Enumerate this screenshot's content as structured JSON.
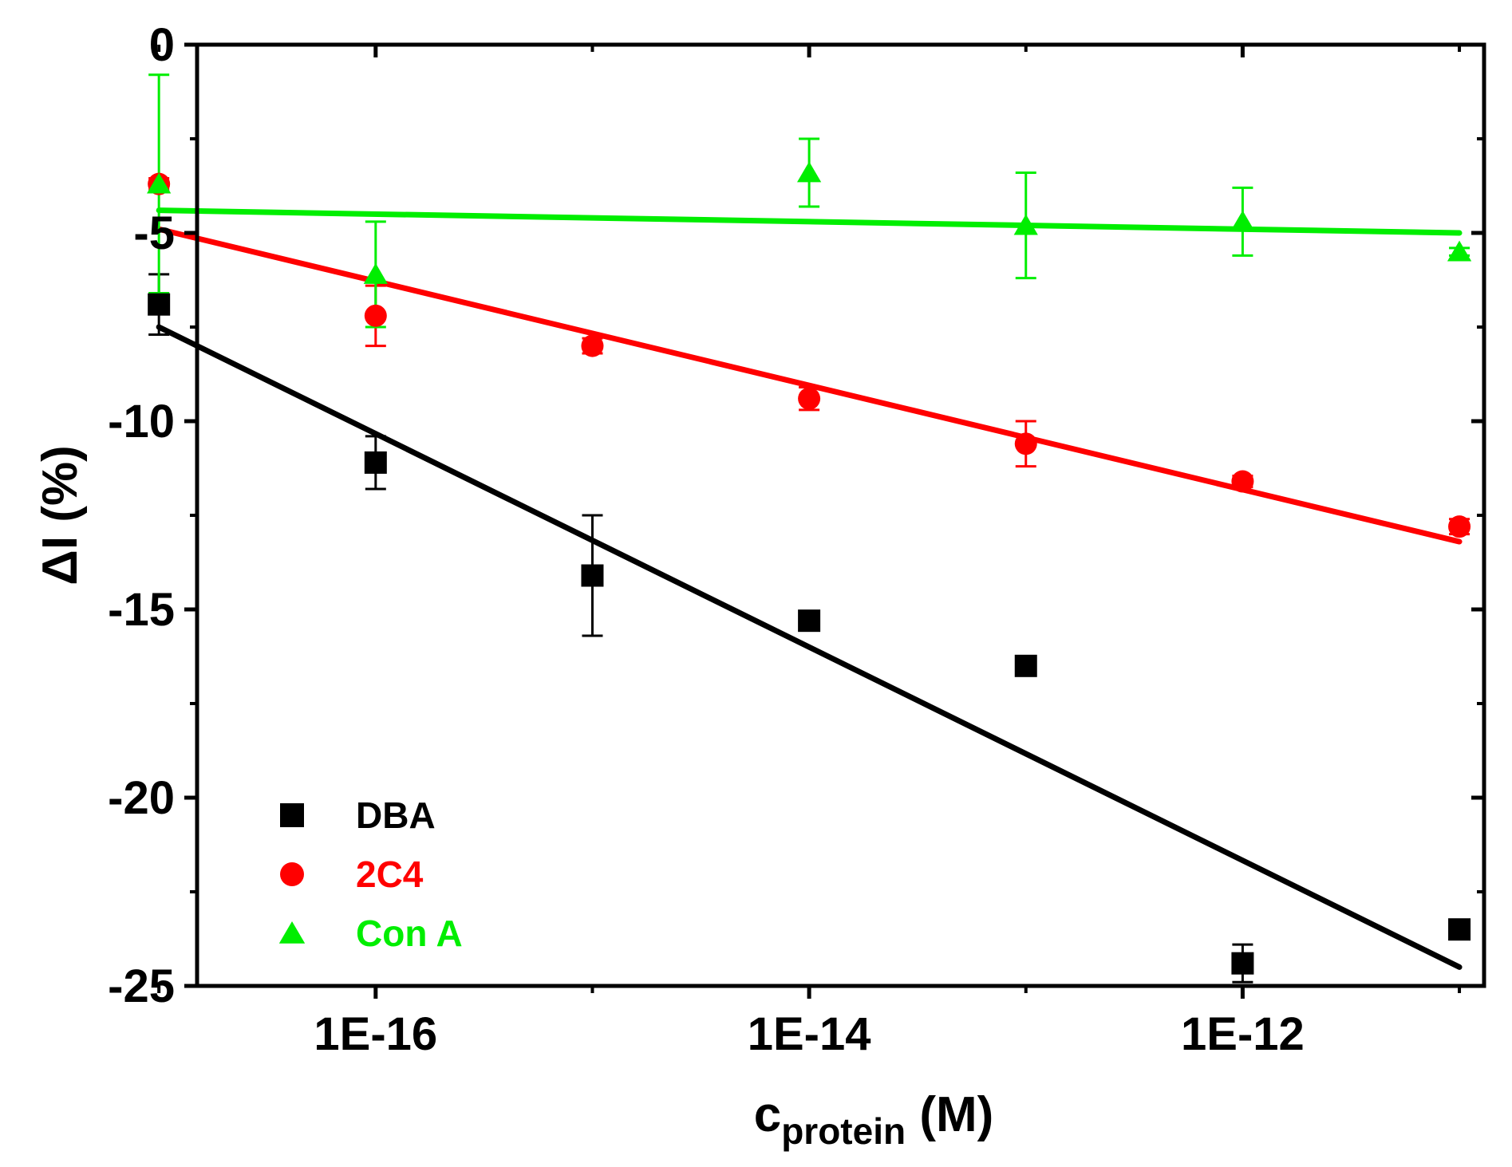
{
  "chart_data": {
    "type": "scatter",
    "x_scale": "log",
    "xlim": [
      1.5e-17,
      1.3e-11
    ],
    "ylim": [
      -25,
      0
    ],
    "yticks": [
      0,
      -5,
      -10,
      -15,
      -20,
      -25
    ],
    "ytick_labels": [
      "0",
      "-5",
      "-10",
      "-15",
      "-20",
      "-25"
    ],
    "xticks": [
      1e-16,
      1e-14,
      1e-12
    ],
    "xtick_labels": [
      "1E-16",
      "1E-14",
      "1E-12"
    ],
    "ylabel": "ΔI (%)",
    "xlabel_main": "c",
    "xlabel_sub": "protein",
    "xlabel_unit": " (M)",
    "legend_position": "bottom-left",
    "grid": false,
    "series": [
      {
        "name": "DBA",
        "marker": "square",
        "color": "#000000",
        "x": [
          1e-17,
          1e-16,
          1e-15,
          1e-14,
          1e-13,
          1e-12,
          1e-11
        ],
        "y": [
          -6.9,
          -11.1,
          -14.1,
          -15.3,
          -16.5,
          -24.4,
          -23.5
        ],
        "yerr": [
          0.8,
          0.7,
          1.6,
          0.2,
          0.15,
          0.5,
          0.2
        ],
        "fit": {
          "x": [
            1e-17,
            1e-11
          ],
          "y": [
            -7.5,
            -24.5
          ]
        }
      },
      {
        "name": "2C4",
        "marker": "circle",
        "color": "#ff0000",
        "x": [
          1e-17,
          1e-16,
          1e-15,
          1e-14,
          1e-13,
          1e-12,
          1e-11
        ],
        "y": [
          -3.7,
          -7.2,
          -8.0,
          -9.4,
          -10.6,
          -11.6,
          -12.8
        ],
        "yerr": [
          0.15,
          0.8,
          0.2,
          0.3,
          0.6,
          0.15,
          0.2
        ],
        "fit": {
          "x": [
            1e-17,
            1e-11
          ],
          "y": [
            -4.9,
            -13.2
          ]
        }
      },
      {
        "name": "Con A",
        "marker": "triangle",
        "color": "#00ee00",
        "x": [
          1e-17,
          1e-16,
          1e-14,
          1e-13,
          1e-12,
          1e-11
        ],
        "y": [
          -3.7,
          -6.1,
          -3.4,
          -4.8,
          -4.7,
          -5.5
        ],
        "yerr": [
          2.9,
          1.4,
          0.9,
          1.4,
          0.9,
          0.1
        ],
        "fit": {
          "x": [
            1e-17,
            1e-11
          ],
          "y": [
            -4.4,
            -5.0
          ]
        }
      }
    ]
  }
}
